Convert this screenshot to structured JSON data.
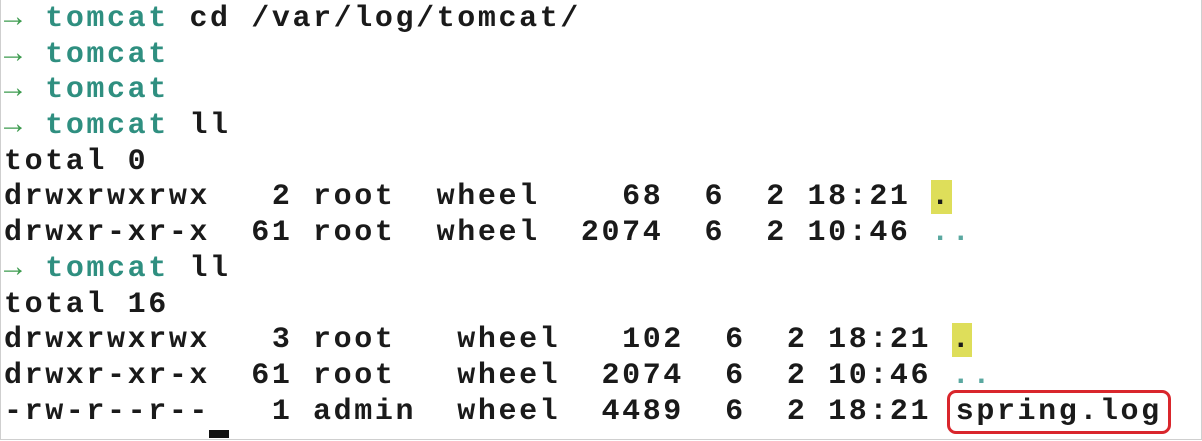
{
  "terminal": {
    "lines": [
      {
        "prompt": "→",
        "dir": "tomcat",
        "command": "cd /var/log/tomcat/"
      },
      {
        "prompt": "→",
        "dir": "tomcat",
        "command": ""
      },
      {
        "prompt": "→",
        "dir": "tomcat",
        "command": ""
      },
      {
        "prompt": "→",
        "dir": "tomcat",
        "command": "ll"
      },
      {
        "text": "total 0"
      },
      {
        "text": "drwxrwxrwx   2 root  wheel    68  6  2 18:21 ",
        "name": ".",
        "style": "highlight"
      },
      {
        "text": "drwxr-xr-x  61 root  wheel  2074  6  2 10:46 ",
        "name": "..",
        "style": "dim"
      },
      {
        "prompt": "→",
        "dir": "tomcat",
        "command": "ll"
      },
      {
        "text": "total 16"
      },
      {
        "text": "drwxrwxrwx   3 root   wheel   102  6  2 18:21 ",
        "name": ".",
        "style": "highlight"
      },
      {
        "text": "drwxr-xr-x  61 root   wheel  2074  6  2 10:46 ",
        "name": "..",
        "style": "dim"
      },
      {
        "text": "-rw-r--r--   1 admin  wheel  4489  6  2 18:21 ",
        "name": "spring.log",
        "style": "boxed"
      }
    ]
  }
}
